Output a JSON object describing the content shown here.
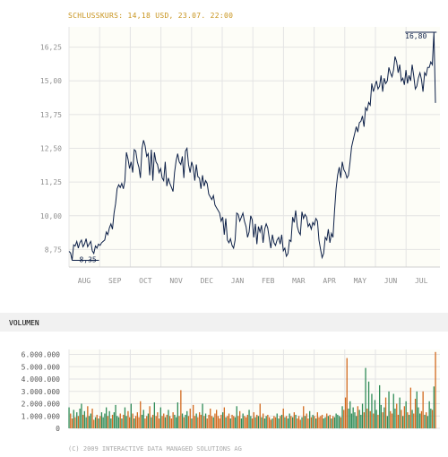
{
  "header": {
    "closing_text": "SCHLUSSKURS: 14,18 USD, 23.07. 22:00"
  },
  "volume_section": {
    "title": "VOLUMEN"
  },
  "footer": {
    "copyright": "(C) 2009 INTERACTIVE DATA MANAGED SOLUTIONS AG"
  },
  "colors": {
    "price_line": "#0d2048",
    "grid": "#e4e4e4",
    "volume_green": "#2e8b57",
    "volume_orange": "#d2691e",
    "axis_text": "#909090",
    "highlight": "#c8941e"
  },
  "chart_data": [
    {
      "type": "line",
      "title": "",
      "x_ticks": [
        "AUG",
        "SEP",
        "OCT",
        "NOV",
        "DEC",
        "JAN",
        "FEB",
        "MAR",
        "APR",
        "MAY",
        "JUN",
        "JUL"
      ],
      "y_ticks": [
        "8,75",
        "10,00",
        "11,25",
        "12,50",
        "13,75",
        "15,00",
        "16,25"
      ],
      "ylim": [
        8.1,
        17.0
      ],
      "grid": true,
      "annotations": {
        "min_label": "8,35",
        "max_label": "16,80"
      },
      "series": [
        {
          "values": [
            8.68,
            8.62,
            8.35,
            8.92,
            8.88,
            9.05,
            8.8,
            9.0,
            9.1,
            8.85,
            8.95,
            9.15,
            8.85,
            8.95,
            9.05,
            8.7,
            8.6,
            8.88,
            8.8,
            8.95,
            8.9,
            9.0,
            9.05,
            9.1,
            9.4,
            9.3,
            9.55,
            9.7,
            9.5,
            10.1,
            10.45,
            11.0,
            11.15,
            11.05,
            11.2,
            11.0,
            11.3,
            12.35,
            12.1,
            11.75,
            12.0,
            11.6,
            12.45,
            12.4,
            12.0,
            11.8,
            11.4,
            12.5,
            12.8,
            12.6,
            12.2,
            12.3,
            11.5,
            12.45,
            11.3,
            12.35,
            12.0,
            11.9,
            11.6,
            11.75,
            11.4,
            11.3,
            12.0,
            11.1,
            11.4,
            11.2,
            11.05,
            10.9,
            11.6,
            12.05,
            12.3,
            12.0,
            11.9,
            12.2,
            11.4,
            12.4,
            12.5,
            11.9,
            11.6,
            12.0,
            11.8,
            11.3,
            11.9,
            11.45,
            11.4,
            11.0,
            11.5,
            11.1,
            11.3,
            11.2,
            10.8,
            10.7,
            10.6,
            10.75,
            10.4,
            10.3,
            10.2,
            10.1,
            9.8,
            9.95,
            9.3,
            9.9,
            9.1,
            9.0,
            9.15,
            8.9,
            8.8,
            9.1,
            10.1,
            10.05,
            9.8,
            9.95,
            10.1,
            9.8,
            9.6,
            9.2,
            9.4,
            10.0,
            9.85,
            9.2,
            9.7,
            8.95,
            9.6,
            9.4,
            9.65,
            9.0,
            9.5,
            9.7,
            9.55,
            9.15,
            8.8,
            9.3,
            9.0,
            8.9,
            9.1,
            9.2,
            8.95,
            9.3,
            8.7,
            8.8,
            8.5,
            8.6,
            9.1,
            9.05,
            9.95,
            9.75,
            10.2,
            9.6,
            9.4,
            9.3,
            10.15,
            9.9,
            10.05,
            9.95,
            9.6,
            9.7,
            9.5,
            9.75,
            9.65,
            9.9,
            9.8,
            9.1,
            8.75,
            8.45,
            8.6,
            9.2,
            9.1,
            9.5,
            9.0,
            9.35,
            9.2,
            10.2,
            11.0,
            11.5,
            11.8,
            11.4,
            12.0,
            11.7,
            11.6,
            11.4,
            11.5,
            12.0,
            12.55,
            12.8,
            13.05,
            13.3,
            13.1,
            13.45,
            13.5,
            13.7,
            13.3,
            14.0,
            13.9,
            14.2,
            14.1,
            14.9,
            14.6,
            14.8,
            15.0,
            14.7,
            14.8,
            15.2,
            14.6,
            15.1,
            14.9,
            15.0,
            15.5,
            15.3,
            15.15,
            15.4,
            15.9,
            15.7,
            15.3,
            15.6,
            15.0,
            15.1,
            14.85,
            15.4,
            14.9,
            15.2,
            15.0,
            15.6,
            15.2,
            14.7,
            14.8,
            15.1,
            15.3,
            15.05,
            14.6,
            15.3,
            15.2,
            15.5,
            15.5,
            15.7,
            15.6,
            16.8,
            14.18
          ]
        }
      ]
    },
    {
      "type": "bar",
      "title": "VOLUMEN",
      "y_ticks": [
        "0",
        "1.000.000",
        "2.000.000",
        "3.000.000",
        "4.000.000",
        "5.000.000",
        "6.000.000"
      ],
      "ylim": [
        0,
        6400000
      ],
      "grid": true,
      "series": [
        {
          "values": [
            1700000,
            1200000,
            800000,
            1500000,
            900000,
            1300000,
            1000000,
            1600000,
            2000000,
            1100000,
            1400000,
            900000,
            1800000,
            1000000,
            1200000,
            1600000,
            700000,
            900000,
            1100000,
            800000,
            1000000,
            1300000,
            900000,
            1200000,
            1700000,
            1000000,
            1400000,
            800000,
            1100000,
            1300000,
            1900000,
            1000000,
            900000,
            1200000,
            800000,
            1100000,
            1700000,
            1000000,
            1400000,
            900000,
            2000000,
            1200000,
            800000,
            1000000,
            1300000,
            900000,
            2200000,
            1100000,
            1500000,
            800000,
            1000000,
            1200000,
            1800000,
            900000,
            1100000,
            2100000,
            1000000,
            1300000,
            800000,
            1700000,
            1000000,
            1200000,
            900000,
            1100000,
            1500000,
            1000000,
            800000,
            1300000,
            1100000,
            900000,
            2100000,
            1000000,
            3100000,
            1200000,
            900000,
            1100000,
            1400000,
            1000000,
            1600000,
            800000,
            1900000,
            1000000,
            1200000,
            900000,
            1300000,
            1100000,
            2000000,
            1000000,
            1200000,
            800000,
            1100000,
            1600000,
            1000000,
            900000,
            1200000,
            1500000,
            1000000,
            800000,
            1100000,
            1300000,
            1700000,
            900000,
            1000000,
            1200000,
            800000,
            1100000,
            1000000,
            900000,
            1800000,
            1000000,
            1400000,
            800000,
            1200000,
            1000000,
            900000,
            1100000,
            1500000,
            1000000,
            800000,
            1300000,
            900000,
            1100000,
            1000000,
            2000000,
            900000,
            1200000,
            800000,
            1000000,
            1100000,
            900000,
            700000,
            800000,
            1000000,
            900000,
            1200000,
            800000,
            1000000,
            1100000,
            1600000,
            900000,
            1000000,
            800000,
            1200000,
            1000000,
            900000,
            1300000,
            1100000,
            800000,
            1000000,
            700000,
            900000,
            1800000,
            1000000,
            1200000,
            800000,
            1400000,
            900000,
            1100000,
            1000000,
            800000,
            1300000,
            900000,
            1000000,
            1100000,
            800000,
            900000,
            1200000,
            1000000,
            1100000,
            800000,
            1000000,
            900000,
            1200000,
            1100000,
            1000000,
            900000,
            1800000,
            1500000,
            2500000,
            5700000,
            1600000,
            2200000,
            1200000,
            1700000,
            1300000,
            1000000,
            1800000,
            1500000,
            1100000,
            2000000,
            1300000,
            4900000,
            1600000,
            3800000,
            1400000,
            2800000,
            1200000,
            2300000,
            1500000,
            1100000,
            3500000,
            1900000,
            1300000,
            1700000,
            2500000,
            1000000,
            3000000,
            1400000,
            1200000,
            2800000,
            1600000,
            2000000,
            1100000,
            2500000,
            1500000,
            1000000,
            1800000,
            2200000,
            1300000,
            1100000,
            3300000,
            1500000,
            1200000,
            2400000,
            3000000,
            1700000,
            1200000,
            1400000,
            3000000,
            1100000,
            1300000,
            1000000,
            2200000,
            1600000,
            1500000,
            3400000,
            6200000
          ]
        }
      ]
    }
  ]
}
